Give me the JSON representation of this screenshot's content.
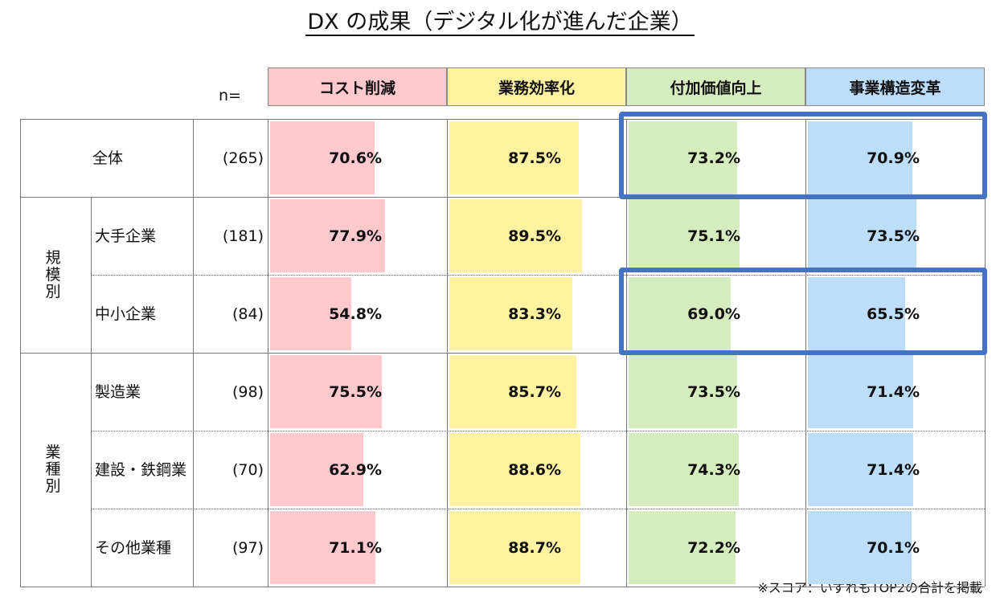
{
  "title": "DX の成果（デジタル化が進んだ企業）",
  "n_label": "n=",
  "note": "※スコア：いずれもTOP2の合計を掲載",
  "colors": {
    "cost": "#FFC9CE",
    "efficiency": "#FFF2A0",
    "value": "#D5ECBE",
    "transform": "#BDDEFB",
    "highlight": "#4472C4"
  },
  "groups": [
    {
      "label": "規模別",
      "rows": [
        1,
        2
      ]
    },
    {
      "label": "業種別",
      "rows": [
        3,
        4,
        5
      ]
    }
  ],
  "chart_data": {
    "type": "table",
    "title": "DX の成果（デジタル化が進んだ企業）",
    "columns": [
      "コスト削減",
      "業務効率化",
      "付加価値向上",
      "事業構造変革"
    ],
    "rows": [
      {
        "label": "全体",
        "n": "(265)",
        "values": [
          70.6,
          87.5,
          73.2,
          70.9
        ],
        "labels": [
          "70.6%",
          "87.5%",
          "73.2%",
          "70.9%"
        ]
      },
      {
        "label": "大手企業",
        "n": "(181)",
        "values": [
          77.9,
          89.5,
          75.1,
          73.5
        ],
        "labels": [
          "77.9%",
          "89.5%",
          "75.1%",
          "73.5%"
        ]
      },
      {
        "label": "中小企業",
        "n": "(84)",
        "values": [
          54.8,
          83.3,
          69.0,
          65.5
        ],
        "labels": [
          "54.8%",
          "83.3%",
          "69.0%",
          "65.5%"
        ]
      },
      {
        "label": "製造業",
        "n": "(98)",
        "values": [
          75.5,
          85.7,
          73.5,
          71.4
        ],
        "labels": [
          "75.5%",
          "85.7%",
          "73.5%",
          "71.4%"
        ]
      },
      {
        "label": "建設・鉄鋼業",
        "n": "(70)",
        "values": [
          62.9,
          88.6,
          74.3,
          71.4
        ],
        "labels": [
          "62.9%",
          "88.6%",
          "74.3%",
          "71.4%"
        ]
      },
      {
        "label": "その他業種",
        "n": "(97)",
        "values": [
          71.1,
          88.7,
          72.2,
          70.1
        ],
        "labels": [
          "71.1%",
          "88.7%",
          "72.2%",
          "70.1%"
        ]
      }
    ],
    "xlim": [
      0,
      100
    ],
    "highlighted_rows": [
      0,
      2
    ],
    "highlighted_columns": [
      2,
      3
    ]
  }
}
